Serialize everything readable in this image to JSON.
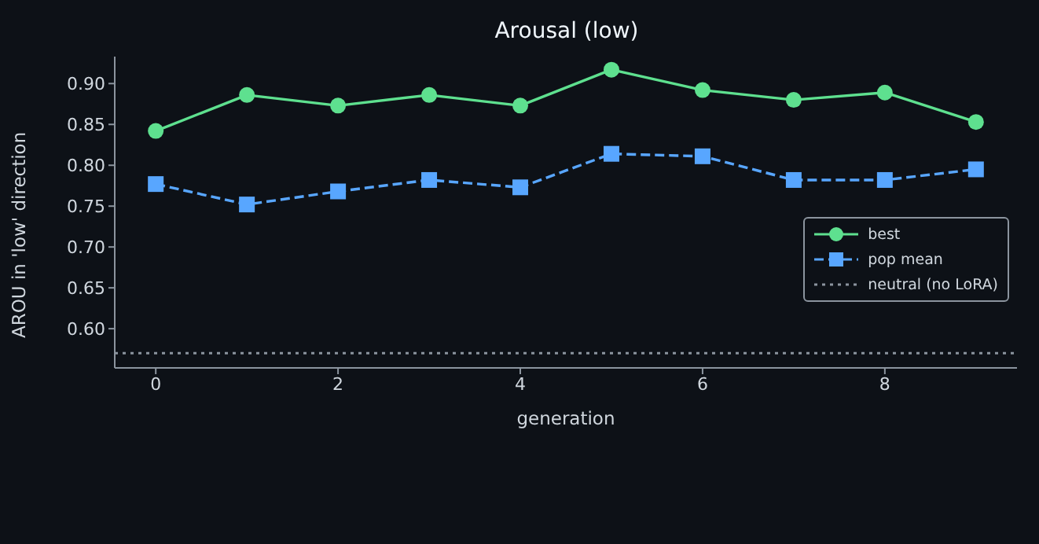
{
  "chart_data": {
    "type": "line",
    "title": "Arousal (low)",
    "xlabel": "generation",
    "ylabel": "AROU in 'low' direction",
    "x": [
      0,
      1,
      2,
      3,
      4,
      5,
      6,
      7,
      8,
      9
    ],
    "series": [
      {
        "name": "best",
        "color": "#5ee08f",
        "marker": "circle",
        "line_style": "solid",
        "values": [
          0.842,
          0.886,
          0.873,
          0.886,
          0.873,
          0.917,
          0.892,
          0.88,
          0.889,
          0.853
        ]
      },
      {
        "name": "pop mean",
        "color": "#58a6ff",
        "marker": "square",
        "line_style": "dashed",
        "values": [
          0.777,
          0.752,
          0.768,
          0.782,
          0.773,
          0.814,
          0.811,
          0.782,
          0.782,
          0.795
        ]
      }
    ],
    "ref_lines": [
      {
        "axis": "y",
        "value": 0.57,
        "label": "neutral (no LoRA)",
        "color": "#8b949e",
        "line_style": "dotted"
      }
    ],
    "xlim": [
      -0.45,
      9.45
    ],
    "xticks": [
      0,
      2,
      4,
      6,
      8
    ],
    "ylim": [
      0.552,
      0.933
    ],
    "yticks": [
      {
        "value": 0.6,
        "label": "0.60"
      },
      {
        "value": 0.65,
        "label": "0.65"
      },
      {
        "value": 0.7,
        "label": "0.70"
      },
      {
        "value": 0.75,
        "label": "0.75"
      },
      {
        "value": 0.8,
        "label": "0.80"
      },
      {
        "value": 0.85,
        "label": "0.85"
      },
      {
        "value": 0.9,
        "label": "0.90"
      }
    ],
    "grid": false,
    "legend": "right"
  }
}
